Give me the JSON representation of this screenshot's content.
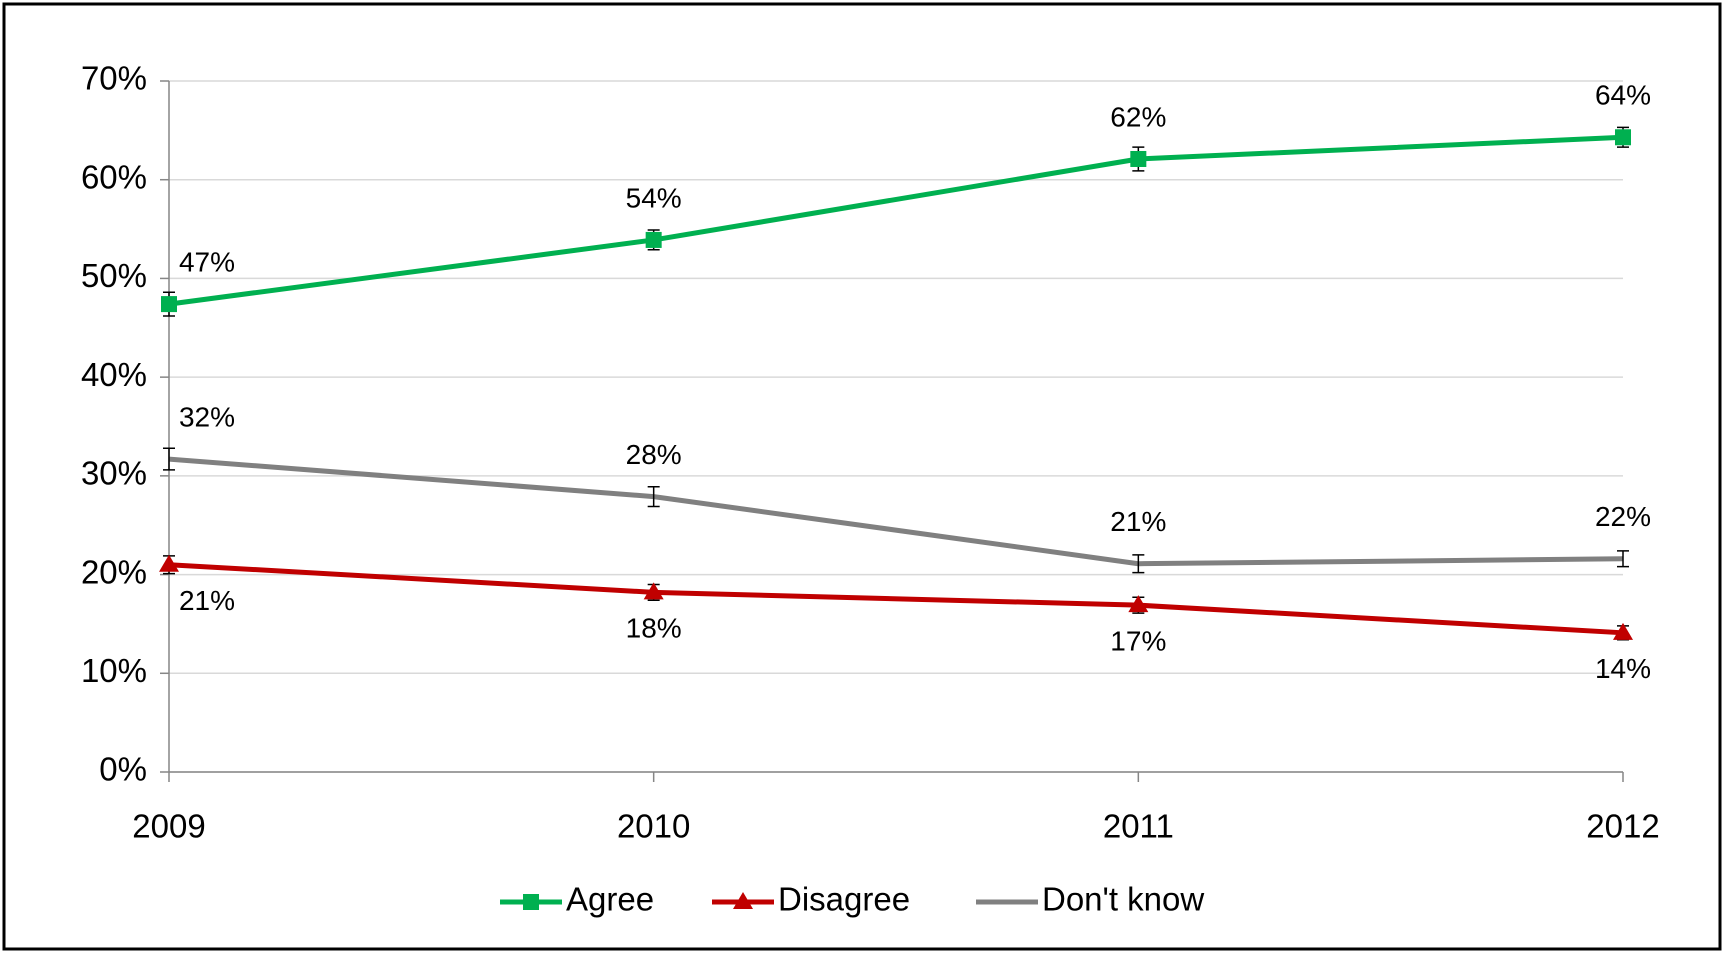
{
  "chart_data": {
    "type": "line",
    "categories": [
      "2009",
      "2010",
      "2011",
      "2012"
    ],
    "ylim": [
      0,
      70
    ],
    "yticks": [
      {
        "value": 0,
        "label": "0%"
      },
      {
        "value": 10,
        "label": "10%"
      },
      {
        "value": 20,
        "label": "20%"
      },
      {
        "value": 30,
        "label": "30%"
      },
      {
        "value": 40,
        "label": "40%"
      },
      {
        "value": 50,
        "label": "50%"
      },
      {
        "value": 60,
        "label": "60%"
      },
      {
        "value": 70,
        "label": "70%"
      }
    ],
    "grid": true,
    "legend": "bottom",
    "series": [
      {
        "name": "Agree",
        "color": "#00b050",
        "marker": "square",
        "label_side": "above",
        "values": [
          47.4,
          53.9,
          62.1,
          64.3
        ],
        "errors": [
          1.2,
          1.0,
          1.2,
          1.0
        ],
        "value_labels": [
          "47%",
          "54%",
          "62%",
          "64%"
        ]
      },
      {
        "name": "Disagree",
        "color": "#c00000",
        "marker": "triangle",
        "label_side": "below",
        "values": [
          21.0,
          18.2,
          16.9,
          14.1
        ],
        "errors": [
          0.9,
          0.8,
          0.8,
          0.7
        ],
        "value_labels": [
          "21%",
          "18%",
          "17%",
          "14%"
        ]
      },
      {
        "name": "Don't know",
        "color": "#808080",
        "marker": "none",
        "label_side": "above",
        "values": [
          31.7,
          27.9,
          21.1,
          21.6
        ],
        "errors": [
          1.1,
          1.0,
          0.9,
          0.8
        ],
        "value_labels": [
          "32%",
          "28%",
          "21%",
          "22%"
        ]
      }
    ]
  }
}
